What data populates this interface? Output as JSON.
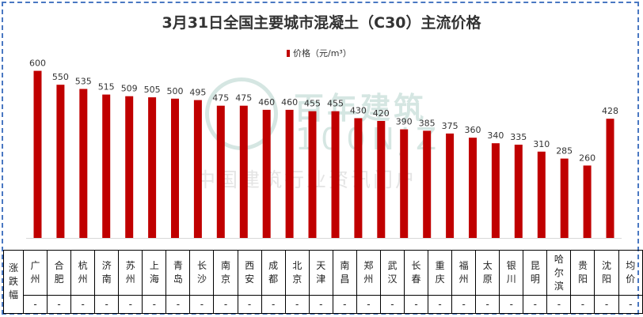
{
  "chart_data": {
    "type": "bar",
    "title": "3月31日全国主要城市混凝土（C30）主流价格",
    "series": [
      {
        "name": "价格（元/m³）",
        "color": "#c00000",
        "values": [
          600,
          550,
          535,
          515,
          509,
          505,
          500,
          495,
          475,
          475,
          460,
          460,
          455,
          455,
          430,
          420,
          390,
          385,
          375,
          360,
          340,
          335,
          310,
          285,
          260,
          428
        ]
      }
    ],
    "categories": [
      "广州",
      "合肥",
      "杭州",
      "济南",
      "苏州",
      "上海",
      "青岛",
      "长沙",
      "南京",
      "西安",
      "成都",
      "北京",
      "天津",
      "南昌",
      "郑州",
      "武汉",
      "长春",
      "重庆",
      "福州",
      "太原",
      "银川",
      "昆明",
      "哈尔滨",
      "贵阳",
      "沈阳",
      "均价"
    ],
    "category_lines": [
      [
        "广",
        "州"
      ],
      [
        "合",
        "肥"
      ],
      [
        "杭",
        "州"
      ],
      [
        "济",
        "南"
      ],
      [
        "苏",
        "州"
      ],
      [
        "上",
        "海"
      ],
      [
        "青",
        "岛"
      ],
      [
        "长",
        "沙"
      ],
      [
        "南",
        "京"
      ],
      [
        "西",
        "安"
      ],
      [
        "成",
        "都"
      ],
      [
        "北",
        "京"
      ],
      [
        "天",
        "津"
      ],
      [
        "南",
        "昌"
      ],
      [
        "郑",
        "州"
      ],
      [
        "武",
        "汉"
      ],
      [
        "长",
        "春"
      ],
      [
        "重",
        "庆"
      ],
      [
        "福",
        "州"
      ],
      [
        "太",
        "原"
      ],
      [
        "银",
        "川"
      ],
      [
        "昆",
        "明"
      ],
      [
        "哈",
        "尔",
        "滨"
      ],
      [
        "贵",
        "阳"
      ],
      [
        "沈",
        "阳"
      ],
      [
        "均",
        "价"
      ]
    ],
    "changes": [
      "-",
      "-",
      "-",
      "-",
      "-",
      "-",
      "-",
      "-",
      "-",
      "-",
      "-",
      "-",
      "-",
      "-",
      "-",
      "-",
      "-",
      "-",
      "-",
      "-",
      "-",
      "-",
      "-",
      "-",
      "-",
      "-"
    ],
    "change_label_lines": [
      "涨",
      "跌",
      "幅"
    ],
    "ylim": [
      0,
      650
    ],
    "grid": false,
    "legend_position": "top-center"
  },
  "watermark": {
    "cn": "百年建筑",
    "en": "100NJZ",
    "sub": "中国建筑行业资讯门户"
  },
  "colors": {
    "bar": "#c00000",
    "border": "#4a78c2",
    "watermark": "#6aa89a"
  }
}
